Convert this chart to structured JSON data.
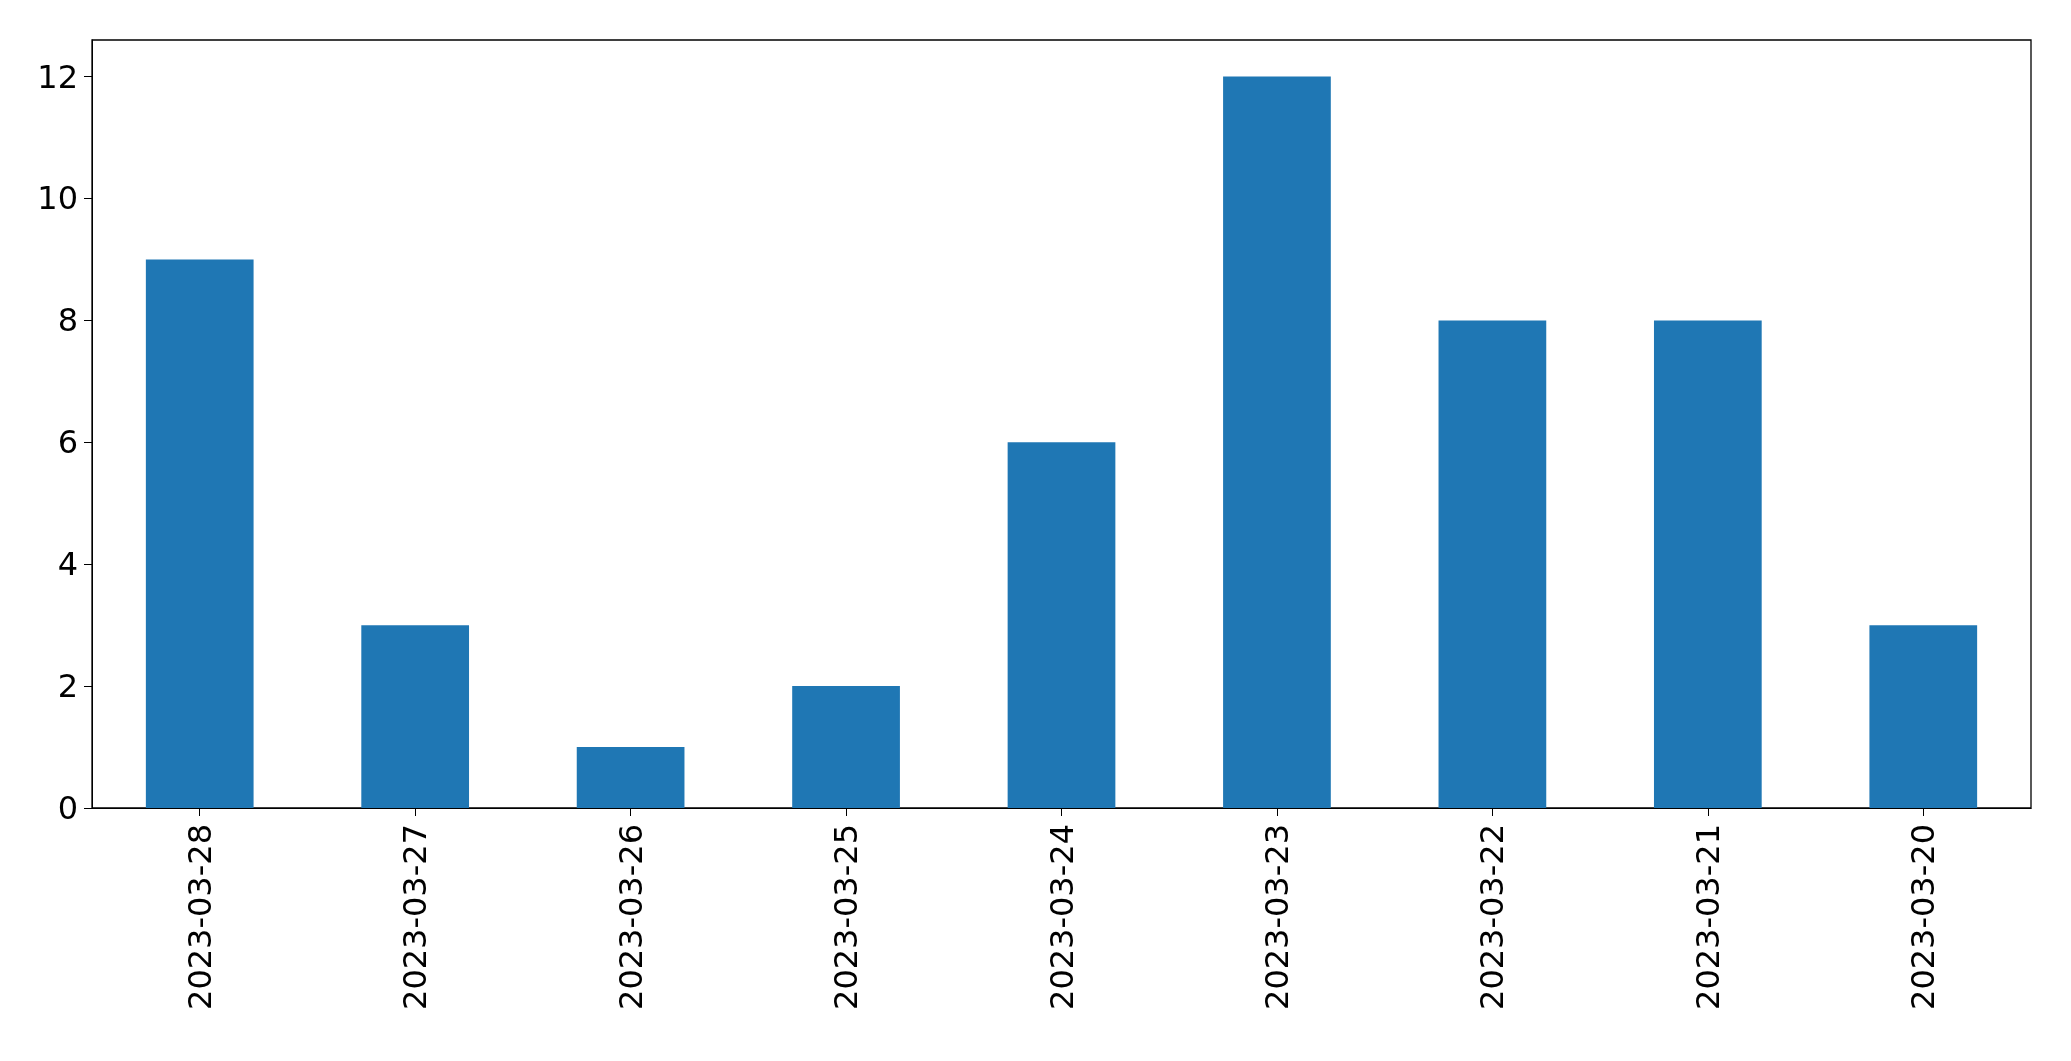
{
  "chart_data": {
    "type": "bar",
    "categories": [
      "2023-03-28",
      "2023-03-27",
      "2023-03-26",
      "2023-03-25",
      "2023-03-24",
      "2023-03-23",
      "2023-03-22",
      "2023-03-21",
      "2023-03-20"
    ],
    "values": [
      9,
      3,
      1,
      2,
      6,
      12,
      8,
      8,
      3
    ],
    "color": "#1f77b4",
    "ylim": [
      0,
      12.6
    ],
    "yticks": [
      0,
      2,
      4,
      6,
      8,
      10,
      12
    ],
    "grid": false
  }
}
